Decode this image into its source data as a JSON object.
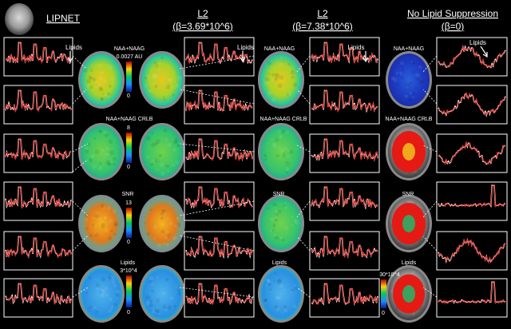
{
  "header": {
    "lipnet": "LIPNET",
    "l2a_title": "L2",
    "l2a_beta": "(β=3.69*10^6)",
    "l2b_title": "L2",
    "l2b_beta": "(β=7.38*10^6)",
    "nolip_title": "No Lipid Suppression",
    "nolip_beta": "(β=0)"
  },
  "annotations": {
    "lipids": "Lipids"
  },
  "rows": [
    {
      "label": "NAA+NAAG",
      "cb_max": "0.0027 AU",
      "cb_min": "0"
    },
    {
      "label": "NAA+NAAG CRLB",
      "cb_max": "8",
      "cb_min": "0"
    },
    {
      "label": "SNR",
      "cb_max": "13",
      "cb_min": "0"
    },
    {
      "label": "Lipids",
      "cb_max": "3*10^4",
      "cb_min": "0"
    }
  ],
  "right_labels": {
    "l2b_naa": "NAA+NAAG",
    "l2b_crlb": "NAA+NAAG CRLB",
    "l2b_snr": "SNR",
    "l2b_lipids": "Lipids",
    "nolip_naa": "NAA+NAAG",
    "nolip_crlb": "NAA+NAAG CRLB",
    "nolip_snr": "SNR",
    "nolip_lipids": "Lipids",
    "nolip_cb_max": "30*10^4",
    "nolip_cb_min": "0"
  },
  "colors": {
    "spectrum_white": "#ffffff",
    "spectrum_red": "#e0241c",
    "cb_top": "#b4000a",
    "cb_mid": "#00c864",
    "cb_bot": "#0a1e9a"
  }
}
